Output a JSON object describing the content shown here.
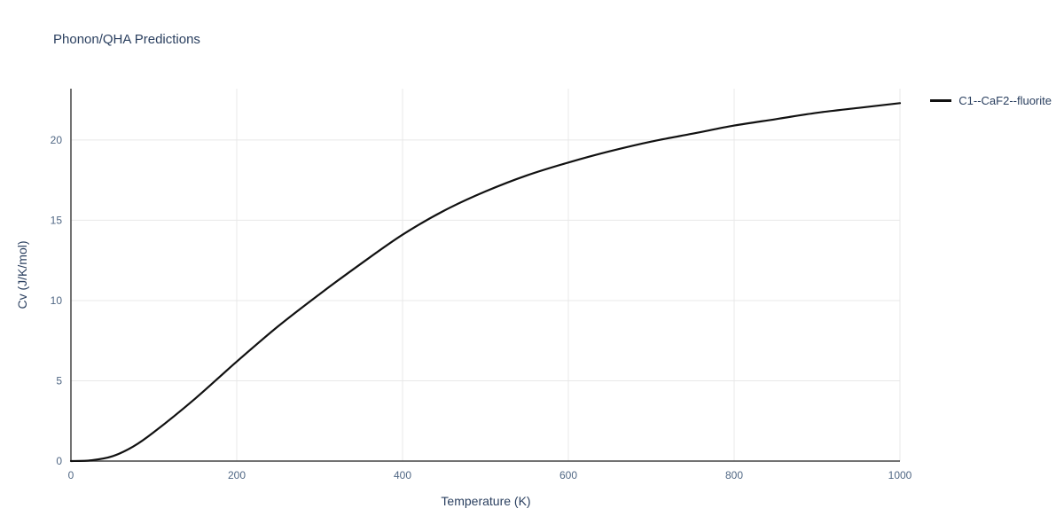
{
  "chart_data": {
    "type": "line",
    "title": "Phonon/QHA Predictions",
    "xlabel": "Temperature (K)",
    "ylabel": "Cv (J/K/mol)",
    "xlim": [
      0,
      1000
    ],
    "ylim": [
      0,
      23.2
    ],
    "xticks": [
      0,
      200,
      400,
      600,
      800,
      1000
    ],
    "yticks": [
      0,
      5,
      10,
      15,
      20
    ],
    "grid": true,
    "legend_position": "top-right-outside",
    "colors": {
      "title": "#2a3f5f",
      "tick": "#506784",
      "grid": "#e8e8e8",
      "axis": "#444444",
      "line": "#111111",
      "background": "#ffffff"
    },
    "series": [
      {
        "name": "C1--CaF2--fluorite",
        "color": "#111111",
        "x": [
          0,
          25,
          50,
          75,
          100,
          150,
          200,
          250,
          300,
          350,
          400,
          450,
          500,
          550,
          600,
          650,
          700,
          750,
          800,
          850,
          900,
          950,
          1000
        ],
        "y": [
          0,
          0.05,
          0.3,
          0.9,
          1.8,
          3.9,
          6.2,
          8.4,
          10.4,
          12.3,
          14.1,
          15.6,
          16.8,
          17.8,
          18.6,
          19.3,
          19.9,
          20.4,
          20.9,
          21.3,
          21.7,
          22.0,
          22.3
        ]
      }
    ]
  }
}
